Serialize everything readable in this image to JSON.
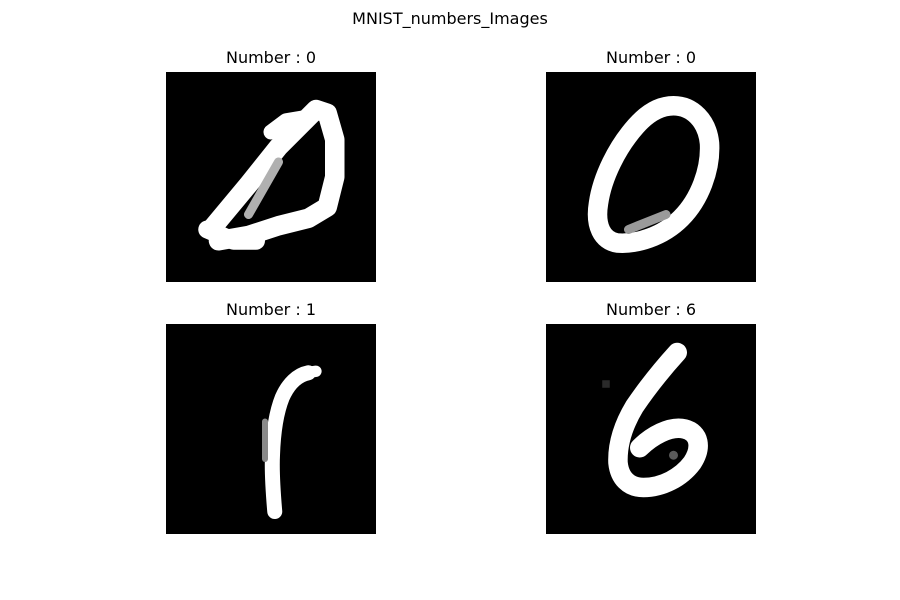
{
  "figure": {
    "title": "MNIST_numbers_Images",
    "panels": [
      {
        "title": "Number : 0",
        "digit_icon": "handwritten-zero-slanted"
      },
      {
        "title": "Number : 0",
        "digit_icon": "handwritten-zero-oval"
      },
      {
        "title": "Number : 1",
        "digit_icon": "handwritten-one"
      },
      {
        "title": "Number : 6",
        "digit_icon": "handwritten-six"
      }
    ]
  },
  "colors": {
    "background": "#000000",
    "stroke": "#ffffff",
    "page": "#ffffff"
  }
}
